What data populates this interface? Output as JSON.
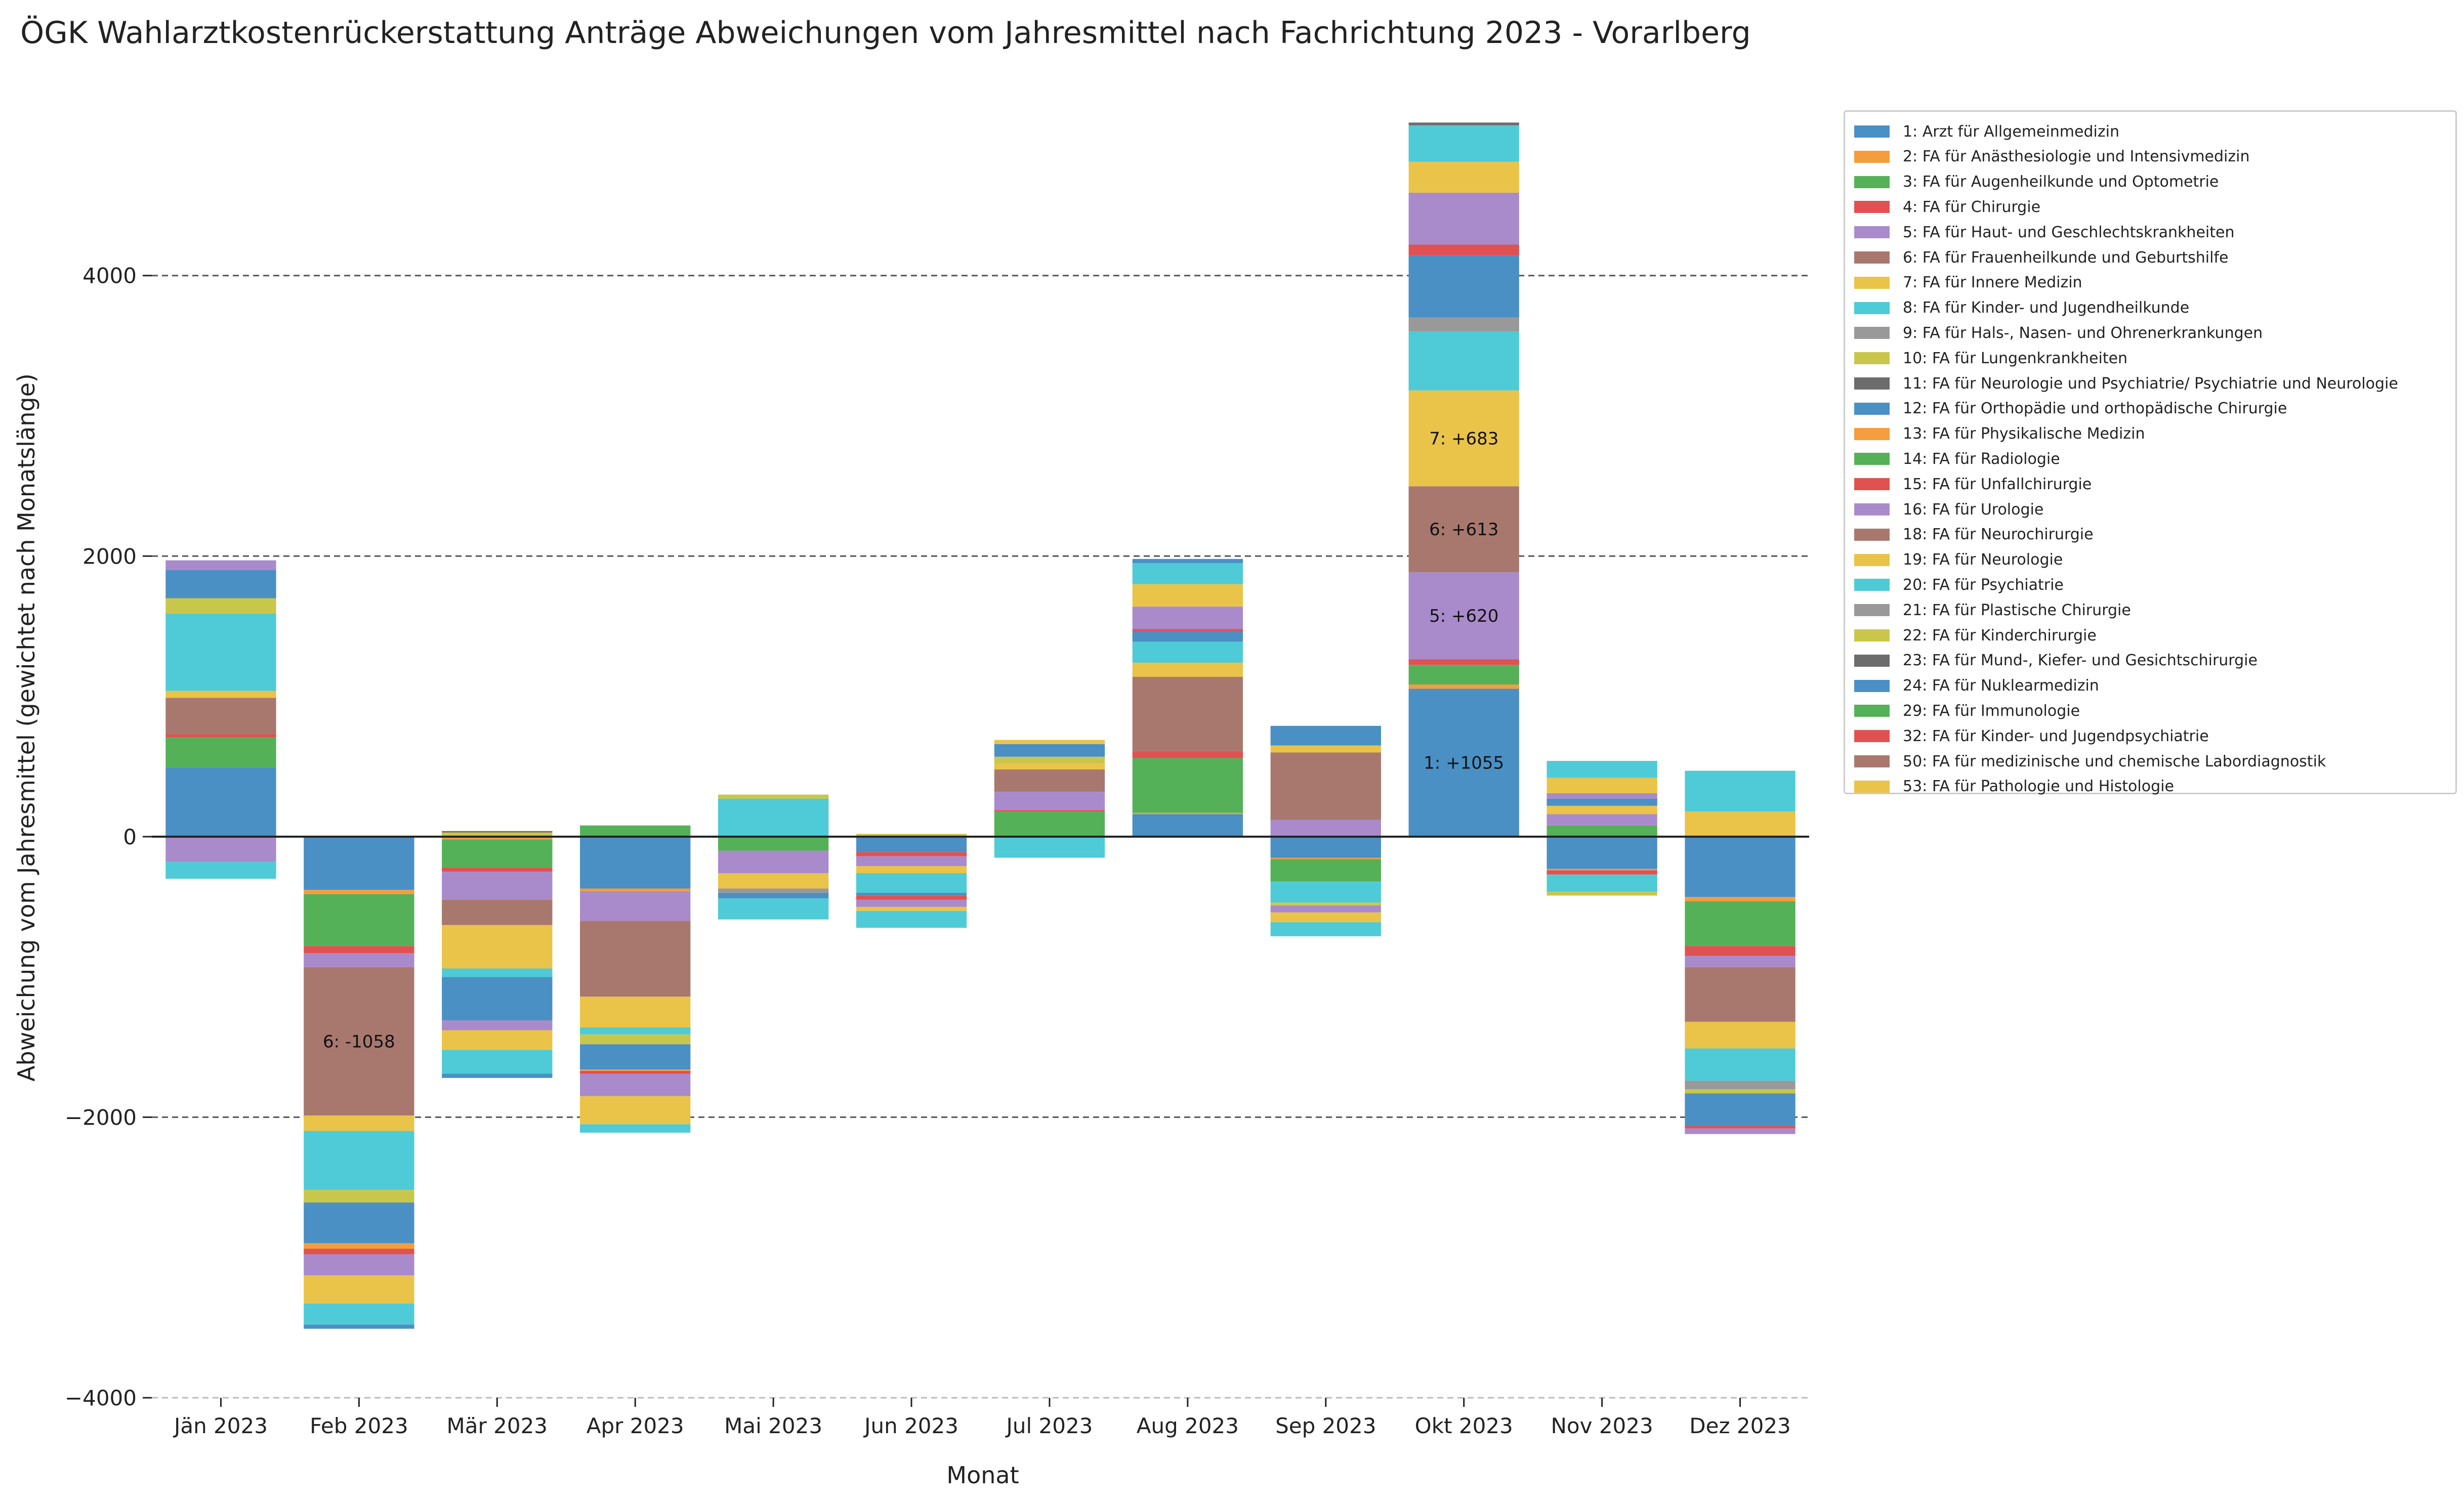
{
  "chart_data": {
    "type": "bar",
    "stacked": true,
    "diverging": true,
    "title": "ÖGK Wahlarztkostenrückerstattung Anträge Abweichungen vom Jahresmittel nach Fachrichtung 2023 - Vorarlberg",
    "xlabel": "Monat",
    "ylabel": "Abweichung vom Jahresmittel (gewichtet nach Monatslänge)",
    "ylim": [
      -4000,
      5200
    ],
    "yticks": [
      "−4000",
      "−2000",
      "0",
      "2000",
      "4000"
    ],
    "ytick_values": [
      -4000,
      -2000,
      0,
      2000,
      4000
    ],
    "grid": "horizontal dashed at y ticks",
    "legend_placement": "right, outside plot",
    "categories": [
      "Jän 2023",
      "Feb 2023",
      "Mär 2023",
      "Apr 2023",
      "Mai 2023",
      "Jun 2023",
      "Jul 2023",
      "Aug 2023",
      "Sep 2023",
      "Okt 2023",
      "Nov 2023",
      "Dez 2023"
    ],
    "series": [
      {
        "name": "1: Arzt für Allgemeinmedizin",
        "color": "#4a90c4",
        "values": [
          490,
          -380,
          0,
          -370,
          0,
          -110,
          0,
          160,
          -150,
          1055,
          -230,
          -430
        ]
      },
      {
        "name": "2: FA für Anästhesiologie und Intensivmedizin",
        "color": "#f59d3d",
        "values": [
          0,
          -30,
          -20,
          -20,
          0,
          0,
          0,
          10,
          -10,
          30,
          -10,
          -30
        ]
      },
      {
        "name": "3: FA für Augenheilkunde und Optometrie",
        "color": "#54b158",
        "values": [
          220,
          -370,
          -200,
          0,
          -100,
          0,
          180,
          390,
          -160,
          140,
          80,
          -320
        ]
      },
      {
        "name": "4: FA für Chirurgie",
        "color": "#e05252",
        "values": [
          20,
          -50,
          -30,
          0,
          0,
          -30,
          10,
          50,
          0,
          40,
          -30,
          -70
        ]
      },
      {
        "name": "5: FA für Haut- und Geschlechtskrankheiten",
        "color": "#a98bcb",
        "values": [
          -180,
          -100,
          -200,
          -210,
          -160,
          -70,
          130,
          0,
          120,
          620,
          80,
          -80
        ]
      },
      {
        "name": "6: FA für Frauenheilkunde und Geburtshilfe",
        "color": "#a8786e",
        "values": [
          260,
          -1058,
          -180,
          -540,
          0,
          0,
          160,
          530,
          480,
          613,
          0,
          -390
        ]
      },
      {
        "name": "7: FA für Innere Medizin",
        "color": "#eac349",
        "values": [
          50,
          -110,
          -310,
          -220,
          -110,
          -50,
          40,
          100,
          50,
          683,
          60,
          -190
        ]
      },
      {
        "name": "8: FA für Kinder- und Jugendheilkunde",
        "color": "#4ecbd6",
        "values": [
          550,
          -420,
          -60,
          -50,
          270,
          -140,
          -110,
          150,
          -150,
          420,
          -120,
          -230
        ]
      },
      {
        "name": "9: FA für Hals-, Nasen- und Ohrenerkrankungen",
        "color": "#999999",
        "values": [
          0,
          0,
          0,
          0,
          -30,
          0,
          0,
          0,
          0,
          100,
          0,
          -60
        ]
      },
      {
        "name": "10: FA für Lungenkrankheiten",
        "color": "#c9c74b",
        "values": [
          110,
          -90,
          30,
          -70,
          30,
          20,
          50,
          0,
          -20,
          0,
          -30,
          -30
        ]
      },
      {
        "name": "11: FA für Neurologie und Psychiatrie/ Psychiatrie und Neurologie",
        "color": "#6c6c6c",
        "values": [
          0,
          0,
          10,
          0,
          0,
          0,
          0,
          0,
          0,
          0,
          0,
          0
        ]
      },
      {
        "name": "12: FA für Orthopädie und orthopädische Chirurgie",
        "color": "#4a90c4",
        "values": [
          200,
          -290,
          -310,
          -180,
          -40,
          -20,
          90,
          70,
          140,
          440,
          50,
          -230
        ]
      },
      {
        "name": "13: FA für Physikalische Medizin",
        "color": "#f59d3d",
        "values": [
          0,
          -40,
          0,
          -10,
          0,
          0,
          0,
          0,
          0,
          0,
          0,
          0
        ]
      },
      {
        "name": "14: FA für Radiologie",
        "color": "#54b158",
        "values": [
          0,
          0,
          0,
          80,
          0,
          0,
          0,
          0,
          0,
          0,
          0,
          0
        ]
      },
      {
        "name": "15: FA für Unfallchirurgie",
        "color": "#e05252",
        "values": [
          0,
          -40,
          0,
          -20,
          0,
          -30,
          0,
          20,
          0,
          80,
          0,
          -20
        ]
      },
      {
        "name": "16: FA für Urologie",
        "color": "#a98bcb",
        "values": [
          70,
          -150,
          -70,
          -160,
          0,
          -50,
          0,
          160,
          -50,
          370,
          40,
          -40
        ]
      },
      {
        "name": "18: FA für Neurochirurgie",
        "color": "#a8786e",
        "values": [
          0,
          0,
          0,
          0,
          0,
          0,
          0,
          0,
          0,
          0,
          0,
          0
        ]
      },
      {
        "name": "19: FA für Neurologie",
        "color": "#eac349",
        "values": [
          0,
          -200,
          -140,
          -200,
          0,
          -30,
          30,
          160,
          -70,
          220,
          110,
          180
        ]
      },
      {
        "name": "20: FA für Psychiatrie",
        "color": "#4ecbd6",
        "values": [
          -120,
          -150,
          -170,
          -60,
          -150,
          -120,
          -40,
          150,
          -100,
          260,
          120,
          290
        ]
      },
      {
        "name": "21: FA für Plastische Chirurgie",
        "color": "#999999",
        "values": [
          0,
          0,
          0,
          0,
          0,
          0,
          0,
          0,
          0,
          0,
          0,
          0
        ]
      },
      {
        "name": "22: FA für Kinderchirurgie",
        "color": "#c9c74b",
        "values": [
          0,
          0,
          0,
          0,
          0,
          0,
          0,
          0,
          0,
          0,
          0,
          0
        ]
      },
      {
        "name": "23: FA für Mund-, Kiefer- und Gesichtschirurgie",
        "color": "#6c6c6c",
        "values": [
          0,
          0,
          0,
          0,
          0,
          0,
          0,
          0,
          0,
          20,
          0,
          0
        ]
      },
      {
        "name": "24: FA für Nuklearmedizin",
        "color": "#4a90c4",
        "values": [
          0,
          -30,
          -30,
          0,
          0,
          0,
          0,
          30,
          0,
          0,
          0,
          0
        ]
      },
      {
        "name": "29: FA für Immunologie",
        "color": "#54b158",
        "values": [
          0,
          0,
          0,
          0,
          0,
          0,
          0,
          0,
          0,
          0,
          0,
          0
        ]
      },
      {
        "name": "32: FA für Kinder- und Jugendpsychiatrie",
        "color": "#e05252",
        "values": [
          0,
          0,
          0,
          0,
          0,
          0,
          0,
          0,
          0,
          0,
          0,
          0
        ]
      },
      {
        "name": "50: FA für medizinische und chemische Labordiagnostik",
        "color": "#a8786e",
        "values": [
          0,
          0,
          0,
          0,
          0,
          0,
          0,
          0,
          0,
          0,
          0,
          0
        ]
      },
      {
        "name": "53: FA für Pathologie und Histologie",
        "color": "#eac349",
        "values": [
          0,
          0,
          0,
          0,
          0,
          0,
          0,
          0,
          0,
          0,
          0,
          0
        ]
      }
    ],
    "annotations": [
      {
        "category": "Feb 2023",
        "text": "6: -1058"
      },
      {
        "category": "Okt 2023",
        "text": "1: +1055"
      },
      {
        "category": "Okt 2023",
        "text": "5: +620"
      },
      {
        "category": "Okt 2023",
        "text": "6: +613"
      },
      {
        "category": "Okt 2023",
        "text": "7: +683"
      }
    ]
  }
}
